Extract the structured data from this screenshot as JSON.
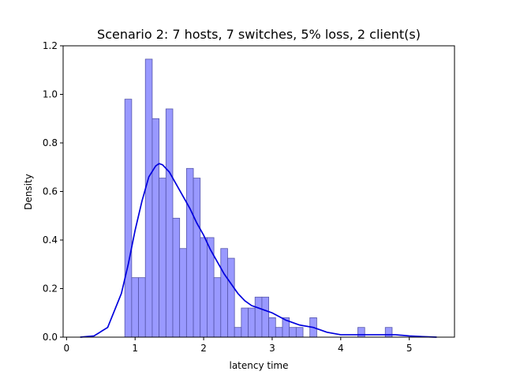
{
  "chart_data": {
    "type": "histogram",
    "title": "Scenario 2: 7 hosts, 7 switches, 5% loss, 2 client(s)",
    "xlabel": "latency time",
    "ylabel": "Density",
    "xlim": [
      -0.05,
      5.66
    ],
    "ylim": [
      0,
      1.2
    ],
    "xticks": [
      "0",
      "1",
      "2",
      "3",
      "4",
      "5"
    ],
    "yticks": [
      "0.0",
      "0.2",
      "0.4",
      "0.6",
      "0.8",
      "1.0",
      "1.2"
    ],
    "grid": false,
    "bars": {
      "color": "#9999ff",
      "edge_color": "#5555aa",
      "bin_edges": [
        0.85,
        0.95,
        1.05,
        1.15,
        1.25,
        1.35,
        1.45,
        1.55,
        1.65,
        1.75,
        1.85,
        1.95,
        2.05,
        2.15,
        2.25,
        2.35,
        2.45,
        2.55,
        2.65,
        2.75,
        2.85,
        2.95,
        3.05,
        3.15,
        3.25,
        3.35,
        3.45,
        3.55,
        3.65,
        4.25,
        4.35,
        4.65,
        4.75
      ],
      "densities": [
        0.98,
        0.245,
        0.245,
        1.145,
        0.9,
        0.655,
        0.94,
        0.49,
        0.365,
        0.695,
        0.655,
        0.41,
        0.41,
        0.245,
        0.365,
        0.325,
        0.04,
        0.12,
        0.12,
        0.165,
        0.165,
        0.08,
        0.04,
        0.08,
        0.04,
        0.04,
        0,
        0.08,
        0.08,
        0.04,
        0,
        0.04
      ],
      "gaps_after_index": [
        28,
        30
      ]
    },
    "kde": {
      "color": "#0000dd",
      "x": [
        0.2,
        0.4,
        0.6,
        0.8,
        0.9,
        1.0,
        1.1,
        1.2,
        1.3,
        1.35,
        1.4,
        1.5,
        1.6,
        1.7,
        1.8,
        1.9,
        2.0,
        2.1,
        2.2,
        2.3,
        2.4,
        2.5,
        2.6,
        2.7,
        2.8,
        2.9,
        3.0,
        3.2,
        3.4,
        3.6,
        3.8,
        4.0,
        4.2,
        4.4,
        4.6,
        4.8,
        5.0,
        5.2,
        5.4
      ],
      "y": [
        0.0,
        0.005,
        0.04,
        0.18,
        0.3,
        0.44,
        0.56,
        0.66,
        0.705,
        0.715,
        0.71,
        0.68,
        0.63,
        0.58,
        0.53,
        0.47,
        0.42,
        0.36,
        0.31,
        0.26,
        0.22,
        0.18,
        0.15,
        0.13,
        0.12,
        0.11,
        0.1,
        0.07,
        0.05,
        0.04,
        0.02,
        0.01,
        0.01,
        0.01,
        0.01,
        0.01,
        0.005,
        0.002,
        0.0
      ]
    }
  }
}
